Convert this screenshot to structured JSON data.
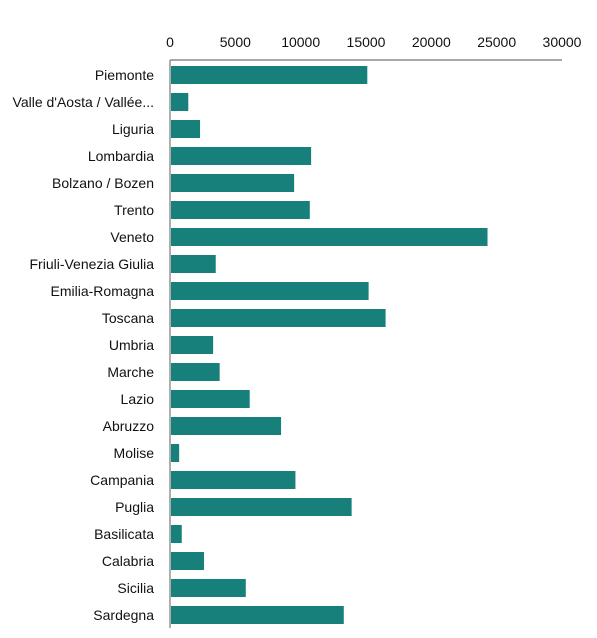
{
  "chart_data": {
    "type": "bar",
    "orientation": "horizontal",
    "categories": [
      "Piemonte",
      "Valle d'Aosta / Vallée...",
      "Liguria",
      "Lombardia",
      "Bolzano / Bozen",
      "Trento",
      "Veneto",
      "Friuli-Venezia Giulia",
      "Emilia-Romagna",
      "Toscana",
      "Umbria",
      "Marche",
      "Lazio",
      "Abruzzo",
      "Molise",
      "Campania",
      "Puglia",
      "Basilicata",
      "Calabria",
      "Sicilia",
      "Sardegna"
    ],
    "values": [
      15100,
      1400,
      2300,
      10800,
      9500,
      10700,
      24300,
      3500,
      15200,
      16500,
      3300,
      3800,
      6100,
      8500,
      700,
      9600,
      13900,
      900,
      2600,
      5800,
      13300
    ],
    "xlim": [
      0,
      30000
    ],
    "xticks": [
      0,
      5000,
      10000,
      15000,
      20000,
      25000,
      30000
    ],
    "x_axis_position": "top",
    "grid": false,
    "legend": "none",
    "bar_color": "#17807a",
    "title": "",
    "xlabel": "",
    "ylabel": ""
  }
}
